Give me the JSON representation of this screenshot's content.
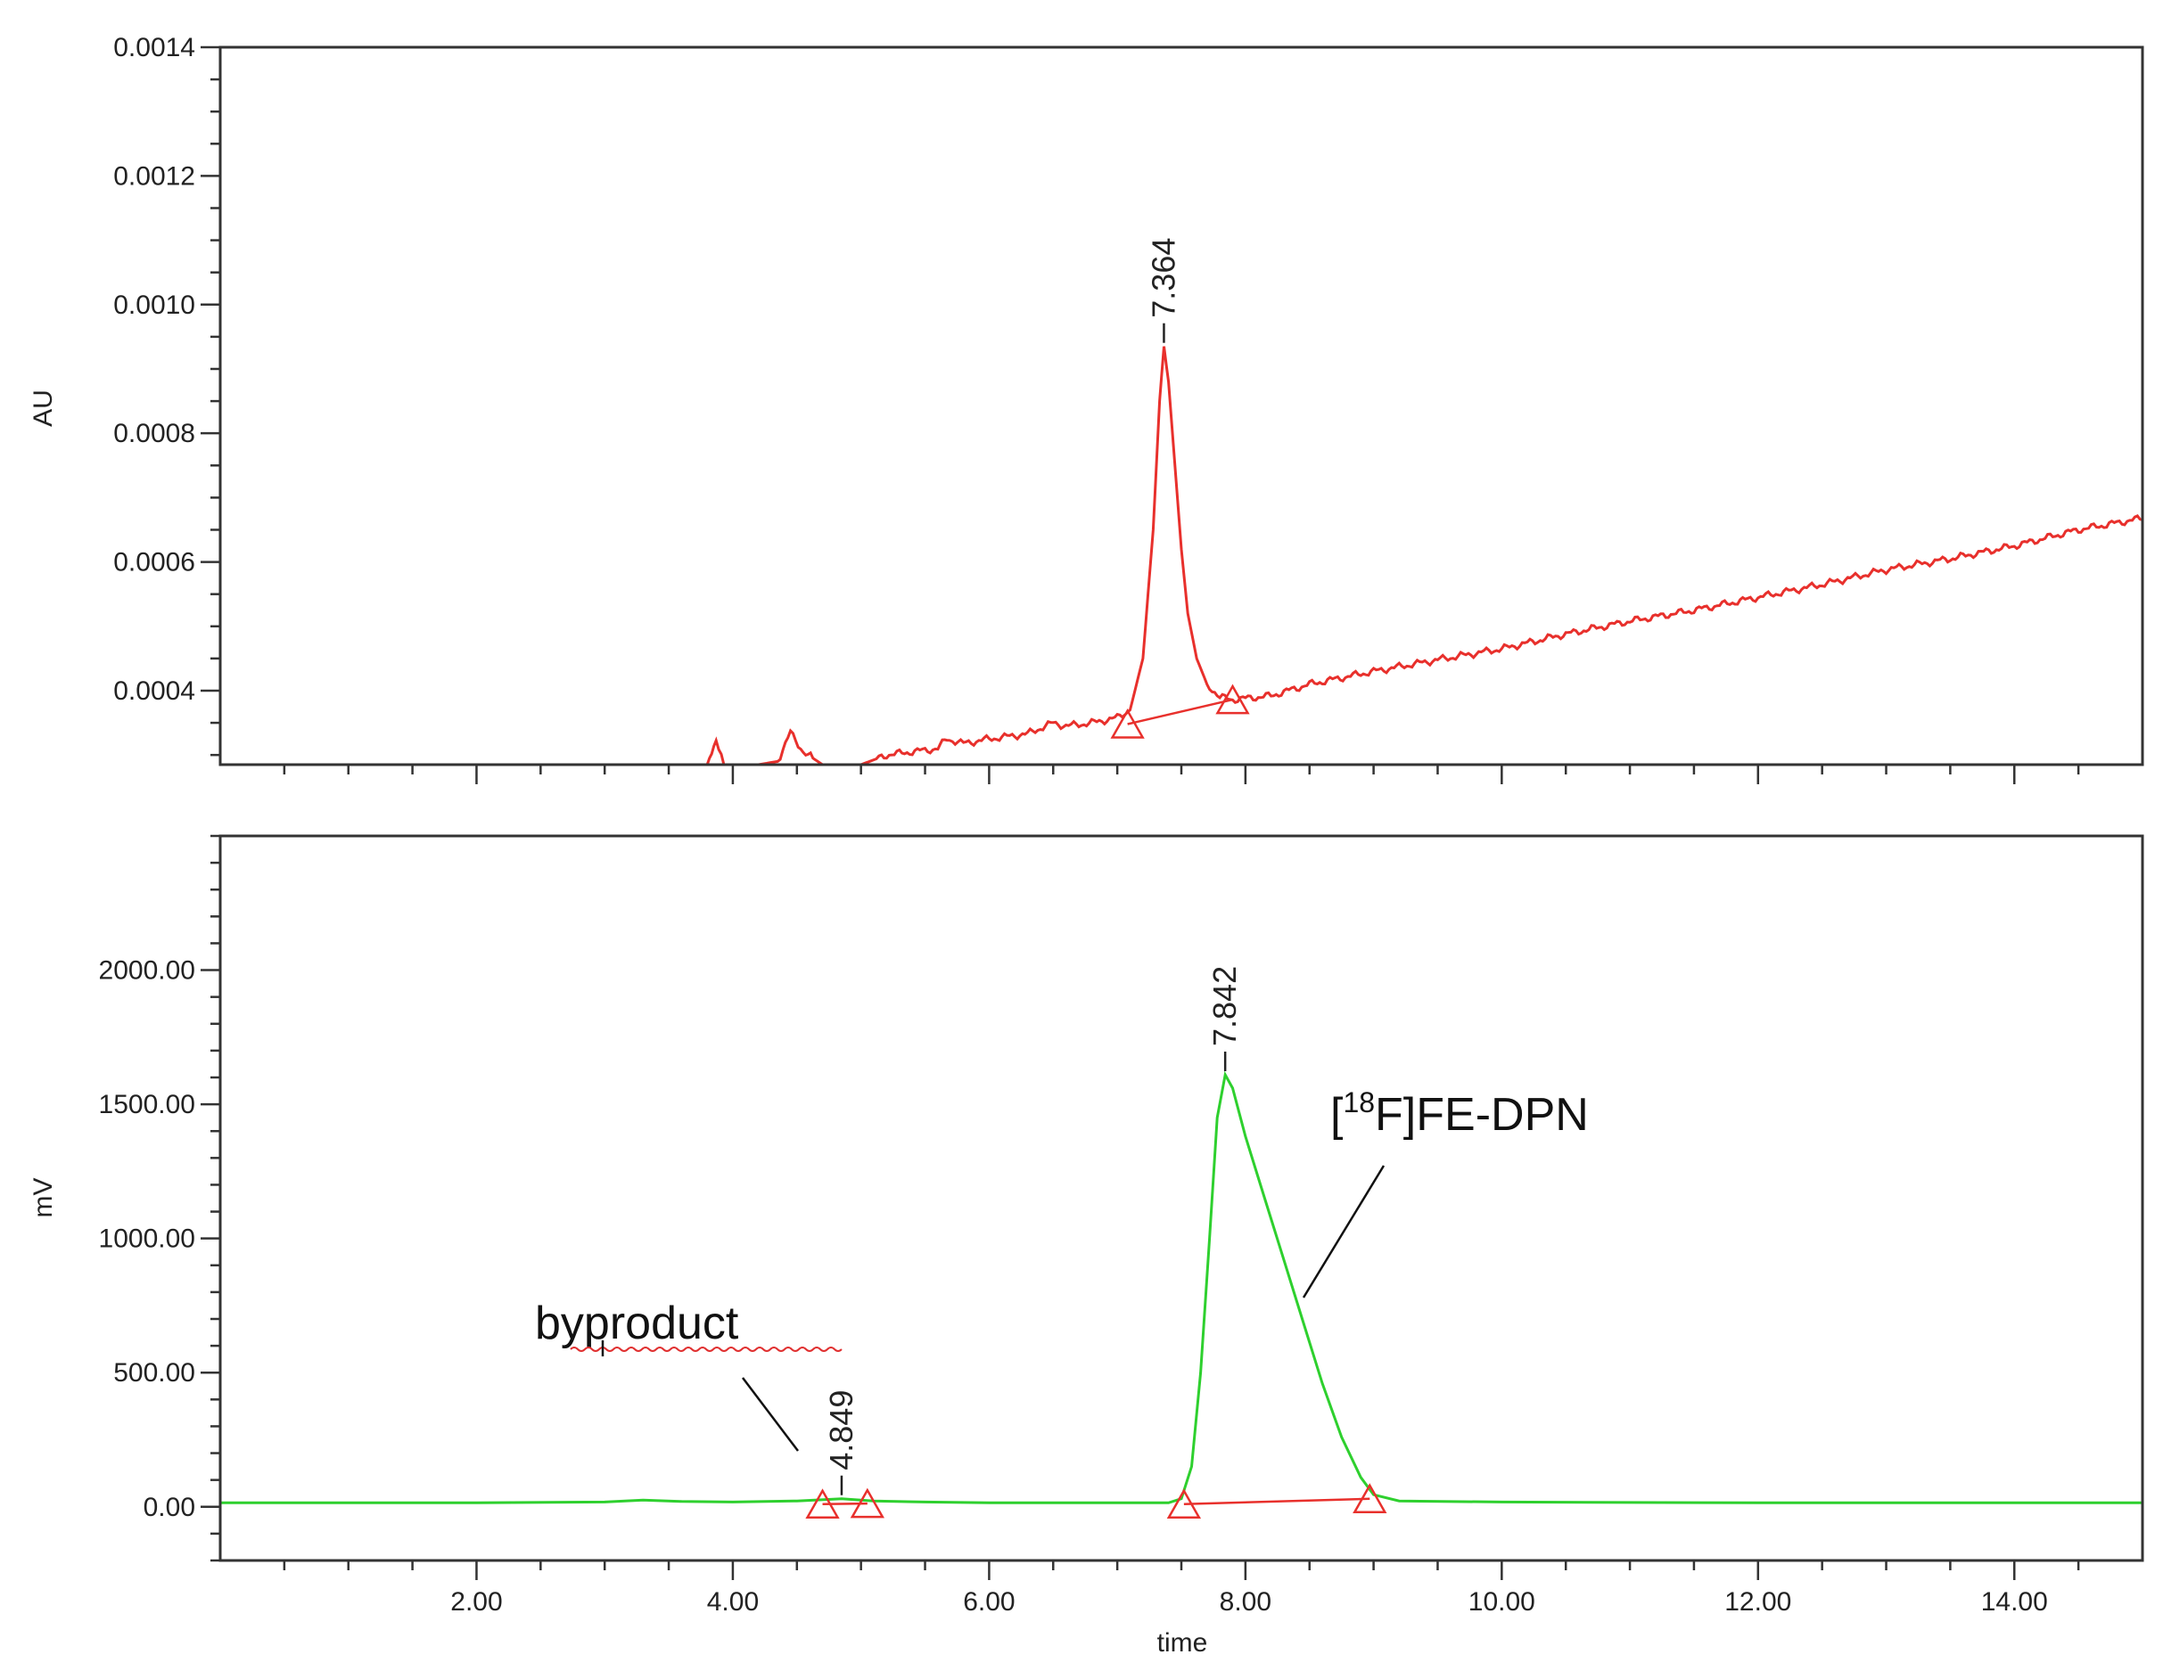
{
  "chart_data": [
    {
      "type": "line",
      "panel": "top",
      "ylabel": "AU",
      "xlabel": "",
      "xlim": [
        0.0,
        15.0
      ],
      "ylim": [
        0.000285,
        0.0014
      ],
      "yticks_labeled": [
        "0.0004",
        "0.0006",
        "0.0008",
        "0.0010",
        "0.0012",
        "0.0014"
      ],
      "xticks_labeled": [],
      "series": [
        {
          "color": "#e8302c",
          "points": [
            [
              3.3,
              0.000285
            ],
            [
              3.8,
              0.000285
            ],
            [
              3.87,
              0.000325
            ],
            [
              3.93,
              0.000285
            ],
            [
              4.2,
              0.000285
            ],
            [
              4.35,
              0.00029
            ],
            [
              4.45,
              0.000335
            ],
            [
              4.55,
              0.000305
            ],
            [
              4.7,
              0.000285
            ],
            [
              5.0,
              0.000285
            ],
            [
              5.2,
              0.0003
            ],
            [
              5.4,
              0.000305
            ],
            [
              5.6,
              0.00031
            ],
            [
              5.67,
              0.000325
            ],
            [
              5.8,
              0.000318
            ],
            [
              6.0,
              0.000325
            ],
            [
              6.3,
              0.000333
            ],
            [
              6.5,
              0.00035
            ],
            [
              6.6,
              0.000345
            ],
            [
              6.8,
              0.00035
            ],
            [
              7.0,
              0.000358
            ],
            [
              7.1,
              0.00037
            ],
            [
              7.2,
              0.00045
            ],
            [
              7.28,
              0.00065
            ],
            [
              7.33,
              0.00085
            ],
            [
              7.364,
              0.000935
            ],
            [
              7.4,
              0.00088
            ],
            [
              7.45,
              0.00075
            ],
            [
              7.5,
              0.00062
            ],
            [
              7.55,
              0.00052
            ],
            [
              7.62,
              0.00045
            ],
            [
              7.7,
              0.00041
            ],
            [
              7.8,
              0.00039
            ],
            [
              7.9,
              0.000386
            ],
            [
              8.2,
              0.000392
            ],
            [
              8.5,
              0.00041
            ],
            [
              9.0,
              0.00043
            ],
            [
              9.5,
              0.000448
            ],
            [
              10.0,
              0.000465
            ],
            [
              10.5,
              0.000488
            ],
            [
              11.0,
              0.000508
            ],
            [
              11.5,
              0.000525
            ],
            [
              12.0,
              0.000545
            ],
            [
              12.5,
              0.000565
            ],
            [
              13.0,
              0.000588
            ],
            [
              13.5,
              0.000605
            ],
            [
              14.0,
              0.000625
            ],
            [
              14.5,
              0.00065
            ],
            [
              15.0,
              0.000668
            ]
          ]
        }
      ],
      "peaks": [
        {
          "rt": 7.364,
          "label": "7.364",
          "apex": 0.000935,
          "start": [
            7.08,
            0.000348
          ],
          "end": [
            7.9,
            0.000386
          ]
        }
      ]
    },
    {
      "type": "line",
      "panel": "bottom",
      "ylabel": "mV",
      "xlabel": "time",
      "xlim": [
        0.0,
        15.0
      ],
      "ylim": [
        -200,
        2500
      ],
      "yticks_labeled": [
        "0.00",
        "500.00",
        "1000.00",
        "1500.00",
        "2000.00"
      ],
      "xticks_labeled": [
        "2.00",
        "4.00",
        "6.00",
        "8.00",
        "10.00",
        "12.00",
        "14.00"
      ],
      "series": [
        {
          "color": "#2ed02e",
          "points": [
            [
              0.0,
              15
            ],
            [
              2.0,
              15
            ],
            [
              3.0,
              18
            ],
            [
              3.3,
              25
            ],
            [
              3.6,
              20
            ],
            [
              4.0,
              18
            ],
            [
              4.5,
              22
            ],
            [
              4.849,
              30
            ],
            [
              5.1,
              22
            ],
            [
              5.5,
              18
            ],
            [
              6.0,
              15
            ],
            [
              6.5,
              15
            ],
            [
              7.0,
              15
            ],
            [
              7.4,
              15
            ],
            [
              7.5,
              30
            ],
            [
              7.58,
              150
            ],
            [
              7.65,
              500
            ],
            [
              7.72,
              1000
            ],
            [
              7.78,
              1450
            ],
            [
              7.842,
              1610
            ],
            [
              7.9,
              1560
            ],
            [
              8.0,
              1380
            ],
            [
              8.15,
              1150
            ],
            [
              8.3,
              920
            ],
            [
              8.45,
              690
            ],
            [
              8.6,
              460
            ],
            [
              8.75,
              260
            ],
            [
              8.9,
              110
            ],
            [
              9.0,
              45
            ],
            [
              9.2,
              22
            ],
            [
              10.0,
              18
            ],
            [
              12.0,
              15
            ],
            [
              14.0,
              15
            ],
            [
              15.0,
              15
            ]
          ]
        }
      ],
      "peaks": [
        {
          "rt": 4.849,
          "label": "4.849",
          "apex": 30,
          "start": [
            4.7,
            10
          ],
          "end": [
            5.05,
            12
          ]
        },
        {
          "rt": 7.842,
          "label": "7.842",
          "apex": 1610,
          "start": [
            7.52,
            10
          ],
          "end": [
            8.97,
            30
          ]
        }
      ],
      "annotations": [
        {
          "text": "byproduct"
        },
        {
          "bracket_open": "[",
          "superscript": "18",
          "text": "F]FE-DPN"
        }
      ]
    }
  ]
}
